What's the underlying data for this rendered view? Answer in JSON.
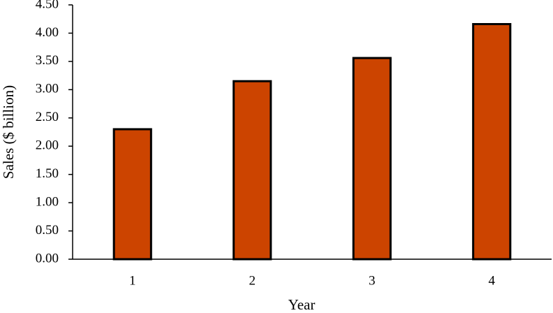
{
  "chart_data": {
    "type": "bar",
    "x_label": "Year",
    "y_label": "Sales ($ billion)",
    "categories": [
      "1",
      "2",
      "3",
      "4"
    ],
    "values": [
      2.3,
      3.15,
      3.56,
      4.16
    ],
    "color": "#cc4400",
    "ylim": [
      0,
      4.5
    ],
    "yticks": [
      {
        "value": 0,
        "label": "0.00"
      },
      {
        "value": 0.5,
        "label": "0.50"
      },
      {
        "value": 1,
        "label": "1.00"
      },
      {
        "value": 1.5,
        "label": "1.50"
      },
      {
        "value": 2,
        "label": "2.00"
      },
      {
        "value": 2.5,
        "label": "2.50"
      },
      {
        "value": 3,
        "label": "3.00"
      },
      {
        "value": 3.5,
        "label": "3.50"
      },
      {
        "value": 4,
        "label": "4.00"
      },
      {
        "value": 4.5,
        "label": "4.50"
      }
    ],
    "grid": false
  }
}
